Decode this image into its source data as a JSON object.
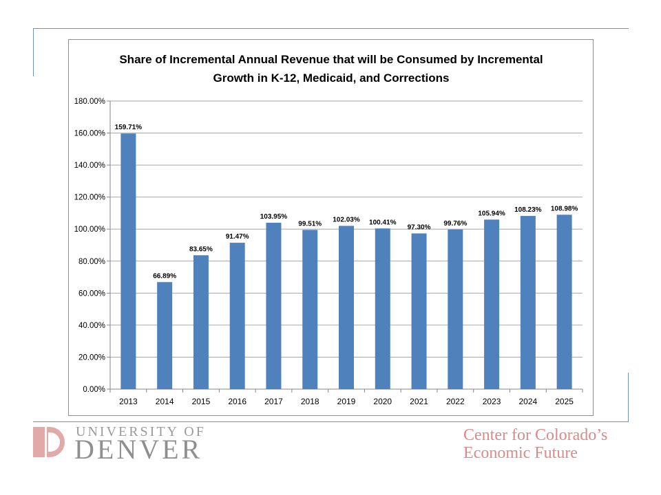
{
  "chart_data": {
    "type": "bar",
    "title": "Share of Incremental Annual Revenue that will be Consumed by Incremental Growth in K-12, Medicaid, and Corrections",
    "title_lines": [
      "Share of Incremental Annual Revenue that will be Consumed by Incremental",
      "Growth in K-12, Medicaid, and Corrections"
    ],
    "xlabel": "",
    "ylabel": "",
    "categories": [
      "2013",
      "2014",
      "2015",
      "2016",
      "2017",
      "2018",
      "2019",
      "2020",
      "2021",
      "2022",
      "2023",
      "2024",
      "2025"
    ],
    "values": [
      159.71,
      66.89,
      83.65,
      91.47,
      103.95,
      99.51,
      102.03,
      100.41,
      97.3,
      99.76,
      105.94,
      108.23,
      108.98
    ],
    "data_labels": [
      "159.71%",
      "66.89%",
      "83.65%",
      "91.47%",
      "103.95%",
      "99.51%",
      "102.03%",
      "100.41%",
      "97.30%",
      "99.76%",
      "105.94%",
      "108.23%",
      "108.98%"
    ],
    "ylim": [
      0,
      180
    ],
    "y_ticks": [
      0,
      20,
      40,
      60,
      80,
      100,
      120,
      140,
      160,
      180
    ],
    "y_tick_labels": [
      "0.00%",
      "20.00%",
      "40.00%",
      "60.00%",
      "80.00%",
      "100.00%",
      "120.00%",
      "140.00%",
      "160.00%",
      "180.00%"
    ],
    "grid": true,
    "legend": "none",
    "bar_color": "#4f81bd"
  },
  "footer": {
    "university_top": "UNIVERSITY OF",
    "university_bottom": "DENVER",
    "center_line1": "Center for Colorado’s",
    "center_line2": "Economic Future"
  },
  "colors": {
    "frame_line": "#6f8fbf",
    "du_mark": "#e2a9a9",
    "center_text": "#d98a8a"
  }
}
